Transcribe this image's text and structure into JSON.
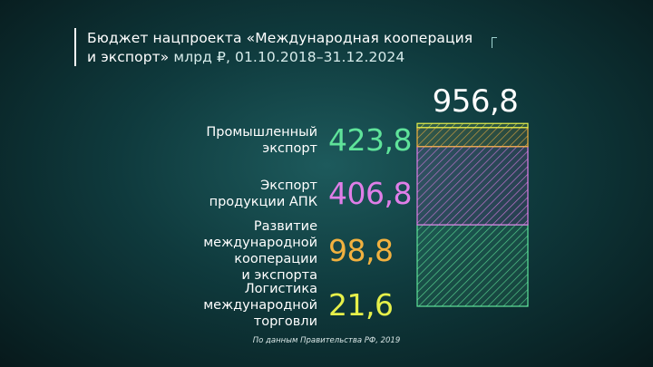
{
  "title": {
    "line1": "Бюджет нацпроекта «Международная кооперация",
    "line2_main": "и экспорт»",
    "line2_sub": " млрд ₽, 01.10.2018–31.12.2024"
  },
  "source": "По данным Правительства РФ, 2019",
  "chart_data": {
    "type": "bar",
    "stacked": true,
    "total": 956.8,
    "total_label": "956,8",
    "categories": [
      "Промышленный экспорт",
      "Экспорт продукции АПК",
      "Развитие международной кооперации и экспорта",
      "Логистика международной торговли"
    ],
    "series": [
      {
        "label_lines": [
          "Промышленный",
          "экспорт"
        ],
        "value": 423.8,
        "value_label": "423,8",
        "color": "#5fe39a"
      },
      {
        "label_lines": [
          "Экспорт",
          "продукции АПК"
        ],
        "value": 406.8,
        "value_label": "406,8",
        "color": "#e07ee8"
      },
      {
        "label_lines": [
          "Развитие",
          "международной кооперации",
          "и экспорта"
        ],
        "value": 98.8,
        "value_label": "98,8",
        "color": "#f2b13f"
      },
      {
        "label_lines": [
          "Логистика",
          "международной торговли"
        ],
        "value": 21.6,
        "value_label": "21,6",
        "color": "#e6f04a"
      }
    ]
  }
}
